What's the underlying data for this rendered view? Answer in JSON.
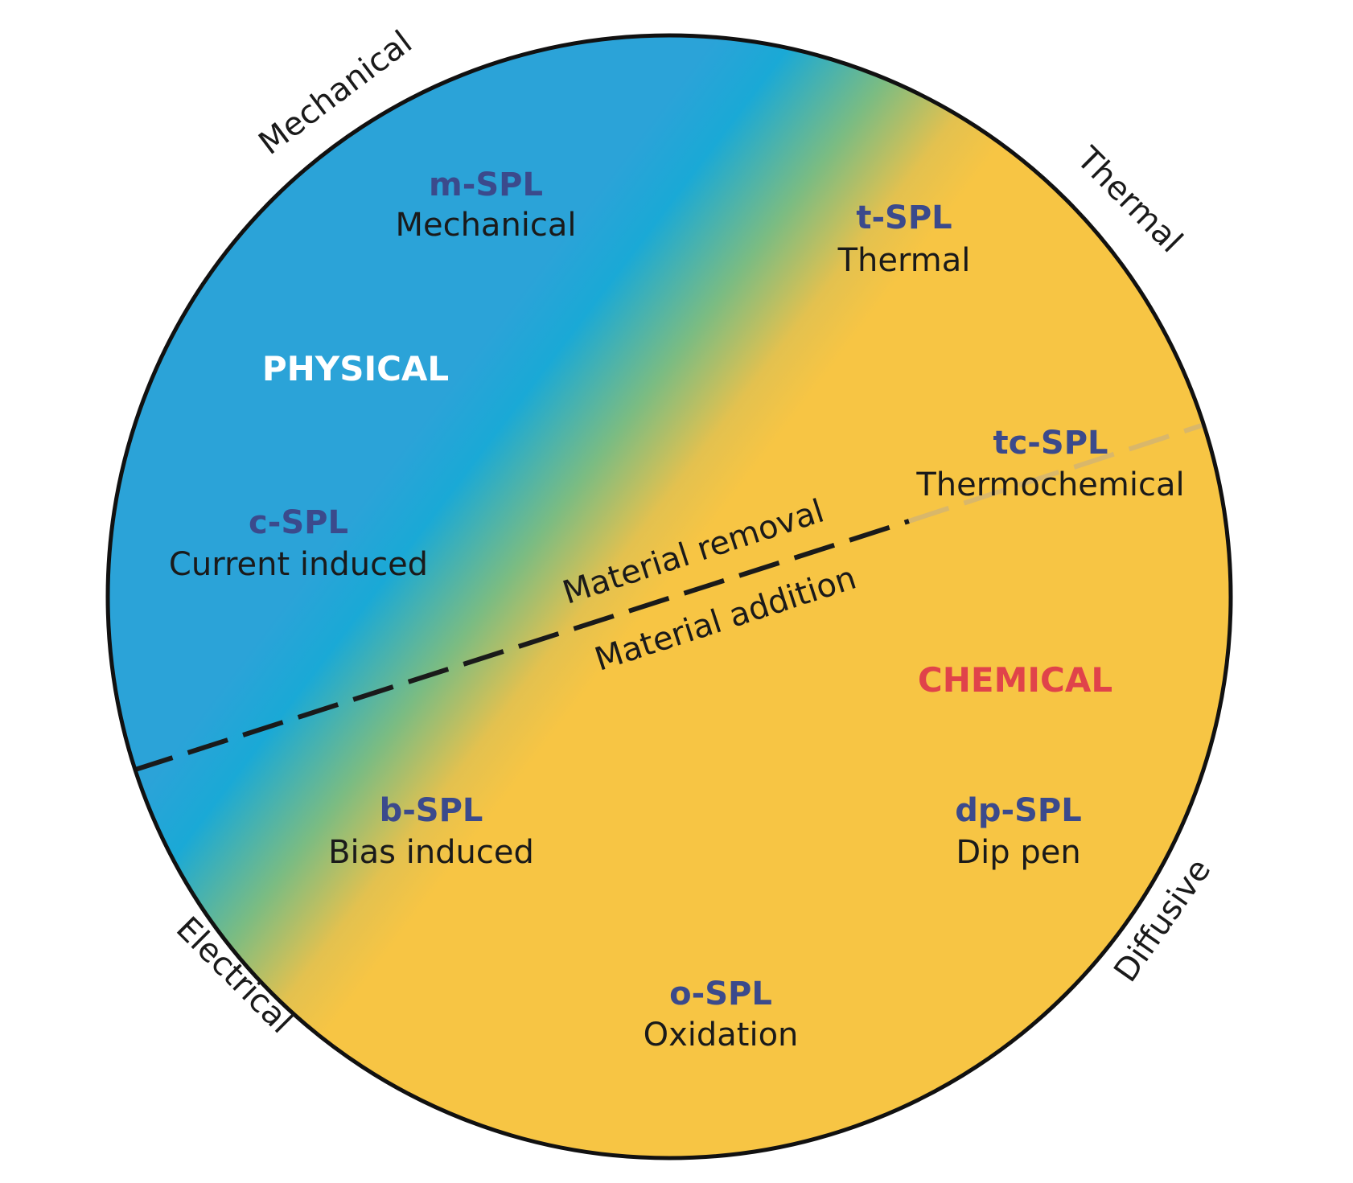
{
  "colors": {
    "physical": "#2ba3d8",
    "chemical": "#f7c544",
    "code_text": "#3b4a8c",
    "desc_text": "#1a1a1a",
    "physical_title": "#ffffff",
    "chemical_title": "#e0434a",
    "outline": "#111111"
  },
  "regions": {
    "physical": "PHYSICAL",
    "chemical": "CHEMICAL"
  },
  "divider": {
    "above": "Material removal",
    "below": "Material addition"
  },
  "edge_labels": {
    "mechanical": "Mechanical",
    "thermal": "Thermal",
    "electrical": "Electrical",
    "diffusive": "Diffusive"
  },
  "methods": [
    {
      "code": "m-SPL",
      "name": "Mechanical"
    },
    {
      "code": "t-SPL",
      "name": "Thermal"
    },
    {
      "code": "c-SPL",
      "name": "Current induced"
    },
    {
      "code": "tc-SPL",
      "name": "Thermochemical"
    },
    {
      "code": "b-SPL",
      "name": "Bias induced"
    },
    {
      "code": "dp-SPL",
      "name": "Dip pen"
    },
    {
      "code": "o-SPL",
      "name": "Oxidation"
    }
  ]
}
